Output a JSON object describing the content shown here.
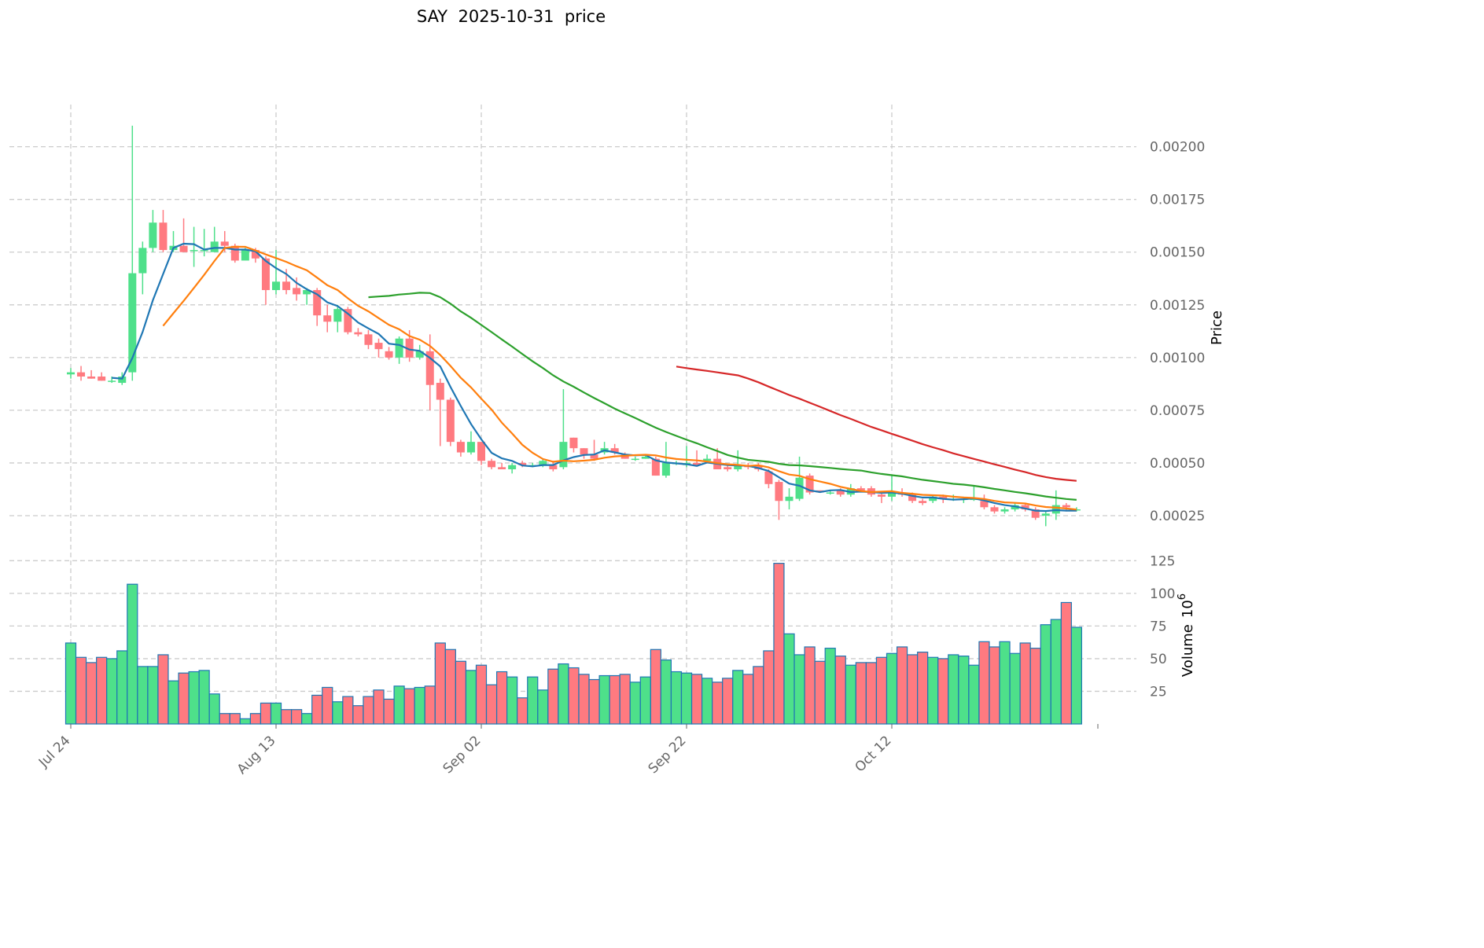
{
  "chart_data": {
    "type": "candlestick",
    "title": "SAY  2025-10-31  price",
    "ylabel": "Price",
    "volume_label": "Volume",
    "volume_exp": "6",
    "ylim": [
      8.6e-05,
      0.0022
    ],
    "volume_ylim": [
      0,
      130
    ],
    "x_ticks": [
      "Jul 24",
      "Aug 13",
      "Sep 02",
      "Sep 22",
      "Oct 12"
    ],
    "x_tick_index": [
      0,
      20,
      40,
      60,
      80
    ],
    "y_ticks": [
      "0.00025",
      "0.00050",
      "0.00075",
      "0.00100",
      "0.00125",
      "0.00150",
      "0.00175",
      "0.00200"
    ],
    "volume_ticks": [
      "25",
      "50",
      "75",
      "100",
      "125"
    ],
    "colors": {
      "up": "#4ee08a",
      "down": "#ff7a80",
      "ma": [
        "#1f77b4",
        "#ff7f0e",
        "#2ca02c",
        "#d62728"
      ]
    },
    "ma_windows": [
      5,
      10,
      30,
      60
    ],
    "ohlc": [
      [
        0.00092,
        0.00095,
        0.0009,
        0.00093
      ],
      [
        0.00093,
        0.00096,
        0.00089,
        0.00091
      ],
      [
        0.00091,
        0.00094,
        0.0009,
        0.0009
      ],
      [
        0.00091,
        0.00093,
        0.00089,
        0.00089
      ],
      [
        0.00089,
        0.00091,
        0.00088,
        0.00089
      ],
      [
        0.00088,
        0.00093,
        0.00087,
        0.00091
      ],
      [
        0.00093,
        0.0021,
        0.00089,
        0.0014
      ],
      [
        0.0014,
        0.00155,
        0.0013,
        0.00152
      ],
      [
        0.00152,
        0.0017,
        0.0015,
        0.00164
      ],
      [
        0.00164,
        0.0017,
        0.0015,
        0.00151
      ],
      [
        0.00151,
        0.0016,
        0.0015,
        0.00153
      ],
      [
        0.00153,
        0.00166,
        0.0015,
        0.0015
      ],
      [
        0.00151,
        0.00162,
        0.00143,
        0.00151
      ],
      [
        0.00151,
        0.00161,
        0.00148,
        0.00151
      ],
      [
        0.0015,
        0.00162,
        0.0015,
        0.00155
      ],
      [
        0.00155,
        0.0016,
        0.0015,
        0.00153
      ],
      [
        0.00153,
        0.00154,
        0.00145,
        0.00146
      ],
      [
        0.00146,
        0.00152,
        0.00146,
        0.00151
      ],
      [
        0.00151,
        0.00152,
        0.00145,
        0.00147
      ],
      [
        0.00147,
        0.00148,
        0.00125,
        0.00132
      ],
      [
        0.00132,
        0.00151,
        0.0013,
        0.00136
      ],
      [
        0.00136,
        0.00142,
        0.0013,
        0.00132
      ],
      [
        0.00133,
        0.00138,
        0.00127,
        0.0013
      ],
      [
        0.0013,
        0.00133,
        0.00125,
        0.00132
      ],
      [
        0.00132,
        0.00133,
        0.00115,
        0.0012
      ],
      [
        0.0012,
        0.00125,
        0.00112,
        0.00117
      ],
      [
        0.00117,
        0.00125,
        0.00112,
        0.00123
      ],
      [
        0.00123,
        0.00124,
        0.00111,
        0.00112
      ],
      [
        0.00112,
        0.00114,
        0.0011,
        0.00111
      ],
      [
        0.00111,
        0.00113,
        0.00104,
        0.00106
      ],
      [
        0.00107,
        0.00109,
        0.001,
        0.00104
      ],
      [
        0.00103,
        0.00105,
        0.00099,
        0.001
      ],
      [
        0.001,
        0.0011,
        0.00097,
        0.00109
      ],
      [
        0.00109,
        0.00113,
        0.00098,
        0.001
      ],
      [
        0.001,
        0.00106,
        0.00099,
        0.00103
      ],
      [
        0.00103,
        0.00111,
        0.00075,
        0.00087
      ],
      [
        0.00088,
        0.0009,
        0.00058,
        0.0008
      ],
      [
        0.0008,
        0.00081,
        0.00058,
        0.0006
      ],
      [
        0.0006,
        0.00061,
        0.00053,
        0.00055
      ],
      [
        0.00055,
        0.00065,
        0.00054,
        0.0006
      ],
      [
        0.0006,
        0.0006,
        0.00049,
        0.00051
      ],
      [
        0.00051,
        0.00052,
        0.00047,
        0.00048
      ],
      [
        0.00048,
        0.0005,
        0.00047,
        0.00047
      ],
      [
        0.00047,
        0.0005,
        0.00045,
        0.00049
      ],
      [
        0.0005,
        0.00051,
        0.00048,
        0.00049
      ],
      [
        0.00049,
        0.0005,
        0.00048,
        0.00049
      ],
      [
        0.00049,
        0.00052,
        0.00048,
        0.00051
      ],
      [
        0.00049,
        0.00051,
        0.00046,
        0.00047
      ],
      [
        0.00048,
        0.00085,
        0.00047,
        0.0006
      ],
      [
        0.00062,
        0.00062,
        0.00055,
        0.00057
      ],
      [
        0.00057,
        0.00057,
        0.00052,
        0.00054
      ],
      [
        0.00054,
        0.00061,
        0.00051,
        0.00052
      ],
      [
        0.00055,
        0.0006,
        0.00054,
        0.00057
      ],
      [
        0.00057,
        0.00059,
        0.00054,
        0.00055
      ],
      [
        0.00054,
        0.00055,
        0.00052,
        0.00052
      ],
      [
        0.00052,
        0.00053,
        0.00051,
        0.00052
      ],
      [
        0.00052,
        0.00054,
        0.00052,
        0.00053
      ],
      [
        0.00052,
        0.00053,
        0.00044,
        0.00044
      ],
      [
        0.00044,
        0.0006,
        0.00043,
        0.0005
      ],
      [
        0.0005,
        0.00051,
        0.00049,
        0.0005
      ],
      [
        0.00049,
        0.00058,
        0.00048,
        0.0005
      ],
      [
        0.0005,
        0.00056,
        0.00049,
        0.00049
      ],
      [
        0.00051,
        0.00054,
        0.0005,
        0.00052
      ],
      [
        0.00052,
        0.00057,
        0.00047,
        0.00047
      ],
      [
        0.00048,
        0.00049,
        0.00046,
        0.00047
      ],
      [
        0.00047,
        0.00056,
        0.00046,
        0.00049
      ],
      [
        0.00049,
        0.0005,
        0.00047,
        0.00048
      ],
      [
        0.00049,
        0.0005,
        0.00046,
        0.00047
      ],
      [
        0.00046,
        0.00047,
        0.00038,
        0.0004
      ],
      [
        0.00041,
        0.00042,
        0.00023,
        0.00032
      ],
      [
        0.00032,
        0.00038,
        0.00028,
        0.00034
      ],
      [
        0.00033,
        0.00053,
        0.00032,
        0.00043
      ],
      [
        0.00044,
        0.00045,
        0.00035,
        0.00036
      ],
      [
        0.00037,
        0.00037,
        0.00036,
        0.00036
      ],
      [
        0.00036,
        0.00037,
        0.00035,
        0.00036
      ],
      [
        0.00037,
        0.00038,
        0.00034,
        0.00035
      ],
      [
        0.00035,
        0.0004,
        0.00034,
        0.00038
      ],
      [
        0.00038,
        0.00039,
        0.00036,
        0.00037
      ],
      [
        0.00038,
        0.00039,
        0.00034,
        0.00035
      ],
      [
        0.00035,
        0.00036,
        0.00031,
        0.00034
      ],
      [
        0.00034,
        0.00044,
        0.00032,
        0.00036
      ],
      [
        0.00036,
        0.00038,
        0.00034,
        0.00035
      ],
      [
        0.00035,
        0.00036,
        0.00031,
        0.00032
      ],
      [
        0.00032,
        0.00033,
        0.0003,
        0.00031
      ],
      [
        0.00032,
        0.00035,
        0.00031,
        0.00034
      ],
      [
        0.00034,
        0.00035,
        0.00031,
        0.00033
      ],
      [
        0.00033,
        0.00035,
        0.00032,
        0.00033
      ],
      [
        0.00033,
        0.00034,
        0.00031,
        0.00033
      ],
      [
        0.00033,
        0.00039,
        0.00032,
        0.00033
      ],
      [
        0.00032,
        0.00035,
        0.00028,
        0.00029
      ],
      [
        0.00029,
        0.0003,
        0.00026,
        0.00027
      ],
      [
        0.00027,
        0.00029,
        0.00026,
        0.00028
      ],
      [
        0.00028,
        0.00031,
        0.00027,
        0.0003
      ],
      [
        0.0003,
        0.00031,
        0.00027,
        0.00028
      ],
      [
        0.00028,
        0.00029,
        0.00023,
        0.00024
      ],
      [
        0.00025,
        0.00027,
        0.0002,
        0.00026
      ],
      [
        0.00026,
        0.00037,
        0.00023,
        0.0003
      ],
      [
        0.0003,
        0.00031,
        0.00027,
        0.00029
      ],
      [
        0.00028,
        0.00029,
        0.00027,
        0.00028
      ]
    ],
    "volume": [
      62,
      51,
      47,
      51,
      50,
      56,
      107,
      44,
      44,
      53,
      33,
      39,
      40,
      41,
      23,
      8,
      8,
      4,
      8,
      16,
      16,
      11,
      11,
      8,
      22,
      28,
      17,
      21,
      14,
      21,
      26,
      19,
      29,
      27,
      28,
      29,
      62,
      57,
      48,
      41,
      45,
      30,
      40,
      36,
      20,
      36,
      26,
      42,
      46,
      43,
      38,
      34,
      37,
      37,
      38,
      32,
      36,
      57,
      49,
      40,
      39,
      38,
      35,
      32,
      35,
      41,
      38,
      44,
      56,
      123,
      69,
      53,
      59,
      48,
      58,
      52,
      45,
      47,
      47,
      51,
      54,
      59,
      53,
      55,
      51,
      50,
      53,
      52,
      45,
      63,
      59,
      63,
      54,
      62,
      58,
      76,
      80,
      93,
      74
    ]
  }
}
